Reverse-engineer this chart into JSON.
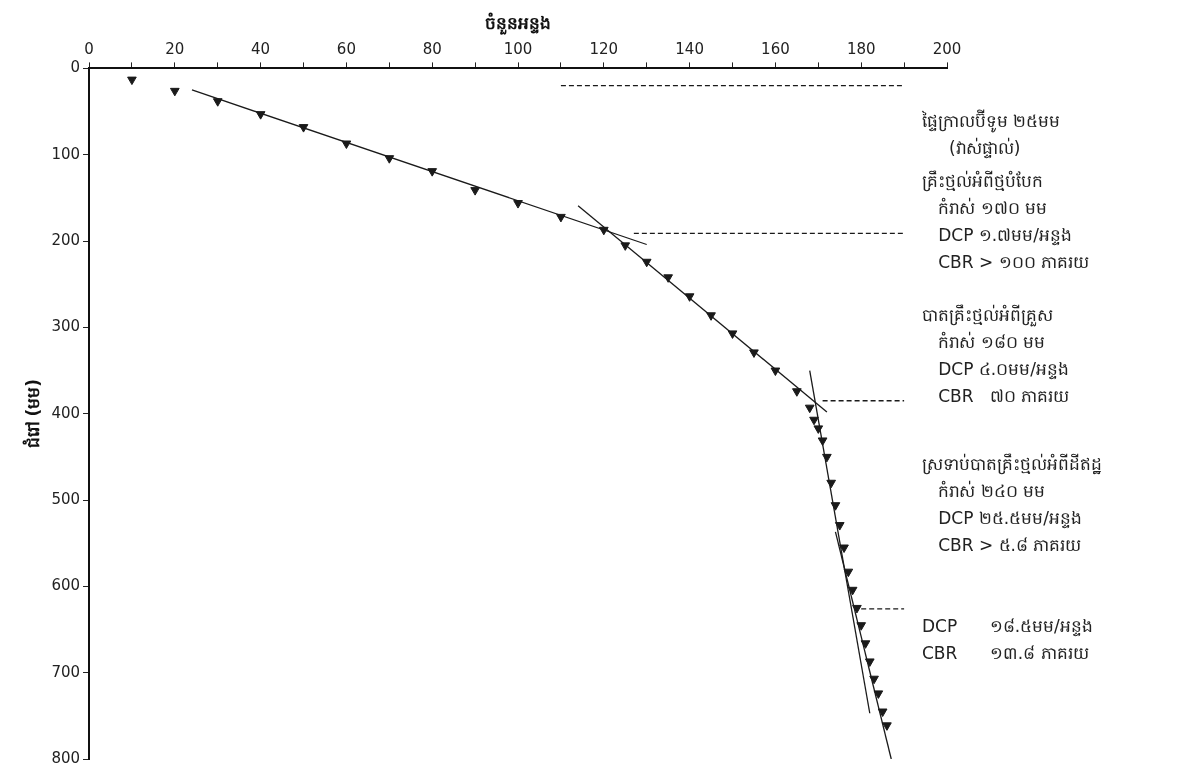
{
  "chart_data": {
    "type": "scatter",
    "xlabel": "ចំនួនអន្ទង",
    "ylabel": "ជំរៅ (មម)",
    "xlim": [
      0,
      200
    ],
    "xticks": [
      0,
      {
        "value": 10,
        "label": null
      },
      20,
      {
        "value": 30,
        "label": null
      },
      40,
      {
        "value": 50,
        "label": null
      },
      60,
      {
        "value": 70,
        "label": null
      },
      80,
      {
        "value": 90,
        "label": null
      },
      100,
      {
        "value": 110,
        "label": null
      },
      120,
      {
        "value": 130,
        "label": null
      },
      140,
      {
        "value": 150,
        "label": null
      },
      160,
      {
        "value": 170,
        "label": null
      },
      180,
      {
        "value": 190,
        "label": null
      },
      200
    ],
    "ylim": [
      800,
      0
    ],
    "yticks": [
      0,
      100,
      200,
      300,
      400,
      500,
      600,
      700,
      800
    ],
    "grid": false,
    "legend": false,
    "marker": "triangle",
    "series": [
      {
        "color": "#1a1a1a",
        "x": [
          10,
          20,
          30,
          40,
          50,
          60,
          70,
          80,
          90,
          100,
          110,
          120,
          125,
          130,
          135,
          140,
          145,
          150,
          155,
          160,
          165,
          168,
          169,
          170,
          171,
          172,
          173,
          174,
          175,
          176,
          177,
          178,
          179,
          180,
          181,
          182,
          183,
          184,
          185,
          186
        ],
        "values": [
          13,
          26,
          38,
          53,
          68,
          87,
          104,
          119,
          141,
          156,
          172,
          187,
          205,
          224,
          242,
          264,
          286,
          307,
          329,
          350,
          374,
          393,
          407,
          417,
          431,
          450,
          480,
          506,
          529,
          555,
          583,
          604,
          625,
          645,
          666,
          687,
          707,
          724,
          745,
          761
        ]
      },
      {
        "type": "line",
        "marker": "none",
        "color": "#1a1a1a",
        "x": [
          24,
          130
        ],
        "values": [
          25,
          204
        ]
      },
      {
        "type": "line",
        "marker": "none",
        "color": "#1a1a1a",
        "x": [
          114,
          172
        ],
        "values": [
          159,
          398
        ]
      },
      {
        "type": "line",
        "marker": "none",
        "color": "#1a1a1a",
        "x": [
          168,
          182
        ],
        "values": [
          350,
          747
        ]
      },
      {
        "type": "line",
        "marker": "none",
        "color": "#1a1a1a",
        "x": [
          174,
          187
        ],
        "values": [
          537,
          800
        ]
      },
      {
        "type": "line",
        "marker": "none",
        "line_style": "dashed",
        "color": "#1a1a1a",
        "x": [
          110,
          190
        ],
        "values": [
          20,
          20
        ]
      },
      {
        "type": "line",
        "marker": "none",
        "line_style": "dashed",
        "color": "#1a1a1a",
        "x": [
          127,
          190
        ],
        "values": [
          191,
          191
        ]
      },
      {
        "type": "line",
        "marker": "none",
        "line_style": "dashed",
        "color": "#1a1a1a",
        "x": [
          171,
          190
        ],
        "values": [
          385,
          385
        ]
      },
      {
        "type": "line",
        "marker": "none",
        "line_style": "dashed",
        "color": "#1a1a1a",
        "x": [
          180,
          190
        ],
        "values": [
          626,
          626
        ]
      }
    ],
    "annotations": [
      "ផ្ទៃក្រាលប៊ីទូម ២៥មម\n     (វាស់ផ្ទាល់)",
      "គ្រឹះថ្មល់អំពីថ្មបំបែក\n   កំរាស់ ១៧០ មម\n   DCP ១.៧មម/អន្ទង\n   CBR > ១០០ ភាគរយ",
      "បាតគ្រឹះថ្មល់អំពីគ្រួស\n   កំរាស់ ១៨០ មម\n   DCP ៤.០មម/អន្ទង\n   CBR   ៧០ ភាគរយ",
      "ស្រទាប់បាតគ្រឹះថ្មល់អំពីដីឥដ្ឋ\n   កំរាស់ ២៤០ មម\n   DCP ២៥.៥មម/អន្ទង\n   CBR > ៥.៨ ភាគរយ",
      "DCP      ១៨.៥មម/អន្ទង\nCBR      ១៣.៨ ភាគរយ"
    ]
  }
}
